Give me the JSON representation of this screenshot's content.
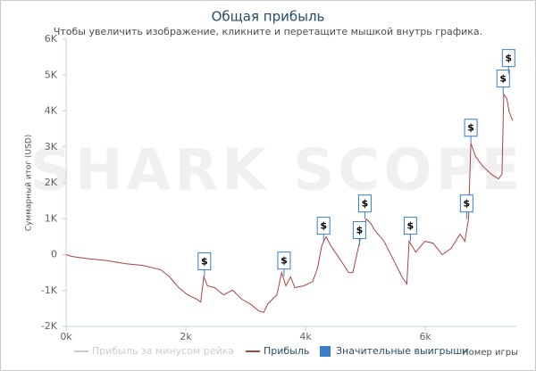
{
  "chart_data": {
    "type": "line",
    "title": "Общая прибыль",
    "subtitle": "Чтобы увеличить изображение, кликните и перетащите мышкой внутрь графика.",
    "watermark": "SHARK SCOPE",
    "y_label": "Суммарный итог (USD)",
    "x_label": "Номер игры",
    "xlim": [
      0,
      7520
    ],
    "ylim": [
      -2000,
      6000
    ],
    "xticks": [
      {
        "value": 0,
        "label": "0k"
      },
      {
        "value": 2000,
        "label": "2k"
      },
      {
        "value": 4000,
        "label": "4k"
      },
      {
        "value": 6000,
        "label": "6k"
      }
    ],
    "yticks": [
      {
        "value": -2000,
        "label": "-2K"
      },
      {
        "value": -1000,
        "label": "-1K"
      },
      0,
      {
        "value": 1000,
        "label": "1K"
      },
      {
        "value": 2000,
        "label": "2K"
      },
      {
        "value": 3000,
        "label": "3K"
      },
      {
        "value": 4000,
        "label": "4K"
      },
      {
        "value": 5000,
        "label": "5K"
      },
      {
        "value": 6000,
        "label": "6K"
      }
    ],
    "inactive_series": {
      "name": "Прибыль за минусом рейка",
      "color": "#cccccc"
    },
    "series": [
      {
        "name": "Прибыль",
        "color": "#a94442",
        "x": [
          0,
          90,
          390,
          690,
          985,
          1280,
          1580,
          1730,
          1880,
          2030,
          2180,
          2250,
          2300,
          2360,
          2480,
          2630,
          2780,
          2930,
          3070,
          3220,
          3300,
          3370,
          3520,
          3600,
          3670,
          3750,
          3820,
          3970,
          4120,
          4200,
          4270,
          4340,
          4420,
          4570,
          4720,
          4790,
          4870,
          4940,
          5015,
          5090,
          5160,
          5310,
          5460,
          5610,
          5690,
          5730,
          5840,
          5990,
          6130,
          6280,
          6430,
          6580,
          6660,
          6720,
          6760,
          6840,
          6950,
          7100,
          7220,
          7280,
          7310,
          7360,
          7400,
          7460
        ],
        "values": [
          0,
          -50,
          -120,
          -170,
          -250,
          -300,
          -420,
          -620,
          -920,
          -1120,
          -1240,
          -1320,
          -620,
          -870,
          -920,
          -1120,
          -990,
          -1240,
          -1370,
          -1570,
          -1610,
          -1370,
          -1120,
          -500,
          -870,
          -620,
          -920,
          -870,
          -750,
          -370,
          250,
          500,
          250,
          -120,
          -500,
          -500,
          120,
          620,
          990,
          870,
          670,
          370,
          -120,
          -620,
          -820,
          370,
          70,
          370,
          320,
          0,
          170,
          570,
          370,
          990,
          3100,
          2730,
          2480,
          2240,
          2110,
          2240,
          4470,
          4350,
          3980,
          3730
        ]
      }
    ],
    "wins": {
      "name": "Значительные выигрыши",
      "color": "#3a7dc9",
      "label": "$",
      "x": [
        2310,
        3640,
        4300,
        4900,
        4990,
        5750,
        6690,
        6760,
        7300,
        7390
      ],
      "values": [
        -620,
        -600,
        370,
        250,
        990,
        370,
        990,
        3100,
        4470,
        5040
      ]
    }
  }
}
